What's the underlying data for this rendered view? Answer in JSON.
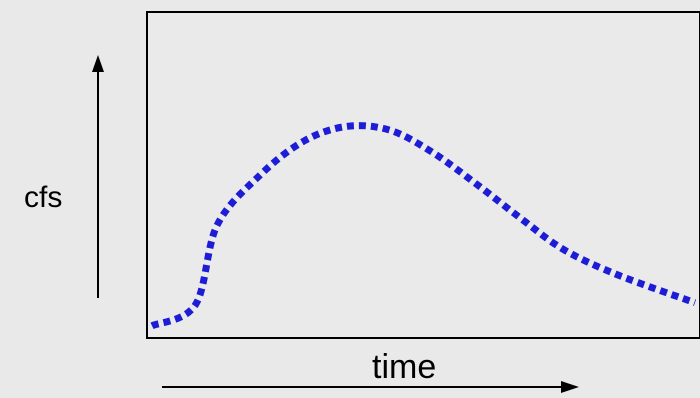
{
  "chart_data": {
    "type": "line",
    "xlabel": "time",
    "ylabel": "cfs",
    "grid": false,
    "series": [
      {
        "values": [
          0.02,
          0.12,
          0.5,
          0.74,
          0.9,
          0.97,
          0.95,
          0.84,
          0.69,
          0.53,
          0.38,
          0.26,
          0.13
        ],
        "x": [
          0.0,
          0.08,
          0.12,
          0.2,
          0.28,
          0.36,
          0.44,
          0.52,
          0.6,
          0.68,
          0.76,
          0.86,
          1.0
        ]
      }
    ],
    "colors": {
      "line": "#1d1dd6",
      "frame": "#000000",
      "background": "#e9e9e9",
      "plot_background": "#eaeaea"
    }
  }
}
